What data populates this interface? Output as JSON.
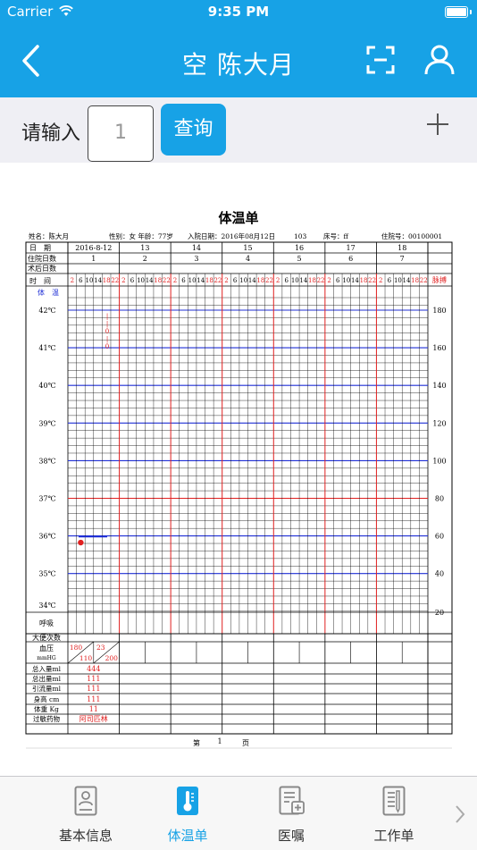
{
  "status_bar": {
    "carrier": "Carrier",
    "time": "9:35 PM"
  },
  "nav": {
    "title": "空  陈大月",
    "back_icon": "back-chevron-icon",
    "scan_icon": "scan-icon",
    "profile_icon": "person-icon"
  },
  "search": {
    "label": "请输入",
    "value": "1",
    "query_label": "查询"
  },
  "sheet": {
    "title": "体温单",
    "info": {
      "name": "姓名：陈大月",
      "gender_age": "性别：女 年龄：77岁",
      "admit_date": "入院日期：2016年08月12日",
      "bed_no": "103",
      "bed": "床号：ff",
      "hospital_no": "住院号：00100001"
    },
    "row_labels": {
      "date": "日　期",
      "hosp_days": "住院日数",
      "op_days": "术后日数",
      "time": "时　间",
      "temperature": "体　温",
      "pulse": "脉搏",
      "breath": "呼吸",
      "stool": "大便次数",
      "bp": "血压",
      "bp_unit": "mmHG",
      "intake": "总入量ml",
      "output": "总出量ml",
      "drainage": "引流量ml",
      "height": "身高  cm",
      "weight": "体重  Kg",
      "allergy": "过敏药物"
    },
    "dates": [
      "2016-8-12",
      "13",
      "14",
      "15",
      "16",
      "17",
      "18"
    ],
    "hosp_days": [
      "1",
      "2",
      "3",
      "4",
      "5",
      "6",
      "7"
    ],
    "times": [
      "2",
      "6",
      "10",
      "14",
      "18",
      "22"
    ],
    "temp_scale": [
      "42℃",
      "41℃",
      "40℃",
      "39℃",
      "38℃",
      "37℃",
      "36℃",
      "35℃",
      "34℃"
    ],
    "pulse_scale": [
      "180",
      "160",
      "140",
      "120",
      "100",
      "80",
      "60",
      "40",
      "20"
    ],
    "vertical_note": [
      "|",
      "|",
      "0",
      "|",
      "0"
    ],
    "day1": {
      "bp1": "180",
      "bp2": "110",
      "bp3": "23",
      "bp4": "200",
      "intake": "444",
      "output": "111",
      "drainage": "111",
      "height": "111",
      "weight": "11",
      "allergy": "阿司匹林"
    },
    "footer": {
      "prefix": "第",
      "page": "1",
      "suffix": "页"
    },
    "temp_point": {
      "day": 1,
      "slot": 2,
      "celsius": 35.8
    },
    "colors": {
      "blue": "#1f2fd6",
      "red": "#e02020",
      "grid": "#000000"
    }
  },
  "tabs": [
    {
      "label": "基本信息",
      "icon": "profile-card-icon",
      "active": false
    },
    {
      "label": "体温单",
      "icon": "thermometer-icon",
      "active": true
    },
    {
      "label": "医嘱",
      "icon": "medical-order-icon",
      "active": false
    },
    {
      "label": "工作单",
      "icon": "worksheet-icon",
      "active": false
    }
  ],
  "colors": {
    "accent": "#17a2e6"
  }
}
